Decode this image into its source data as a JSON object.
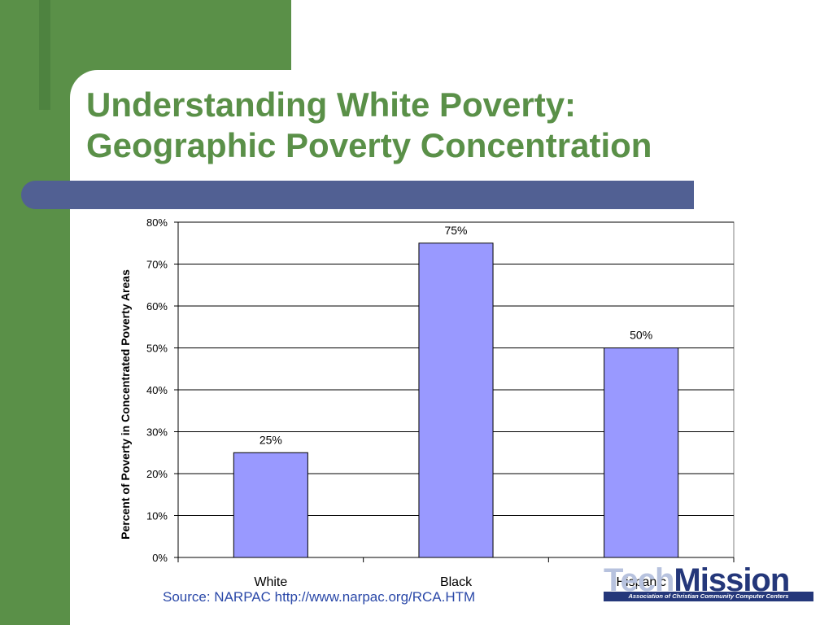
{
  "slide": {
    "title_line1": "Understanding White Poverty:",
    "title_line2": "Geographic Poverty Concentration",
    "source": "Source: NARPAC http://www.narpac.org/RCA.HTM"
  },
  "logo": {
    "part1": "Tech",
    "part2": "Mission",
    "tagline": "Association of Christian Community Computer Centers"
  },
  "colors": {
    "green": "#5a9048",
    "title_green": "#5a9048",
    "blue_bar": "#516093",
    "bar_fill": "#9999ff",
    "source_text": "#2a48a8"
  },
  "chart_data": {
    "type": "bar",
    "categories": [
      "White",
      "Black",
      "Hispanic"
    ],
    "values": [
      25,
      75,
      50
    ],
    "data_labels": [
      "25%",
      "75%",
      "50%"
    ],
    "ylabel": "Percent of Poverty in Concentrated Poverty Areas",
    "xlabel": "",
    "ylim": [
      0,
      80
    ],
    "yticks": [
      0,
      10,
      20,
      30,
      40,
      50,
      60,
      70,
      80
    ],
    "ytick_labels": [
      "0%",
      "10%",
      "20%",
      "30%",
      "40%",
      "50%",
      "60%",
      "70%",
      "80%"
    ],
    "grid": true,
    "legend": "none"
  }
}
